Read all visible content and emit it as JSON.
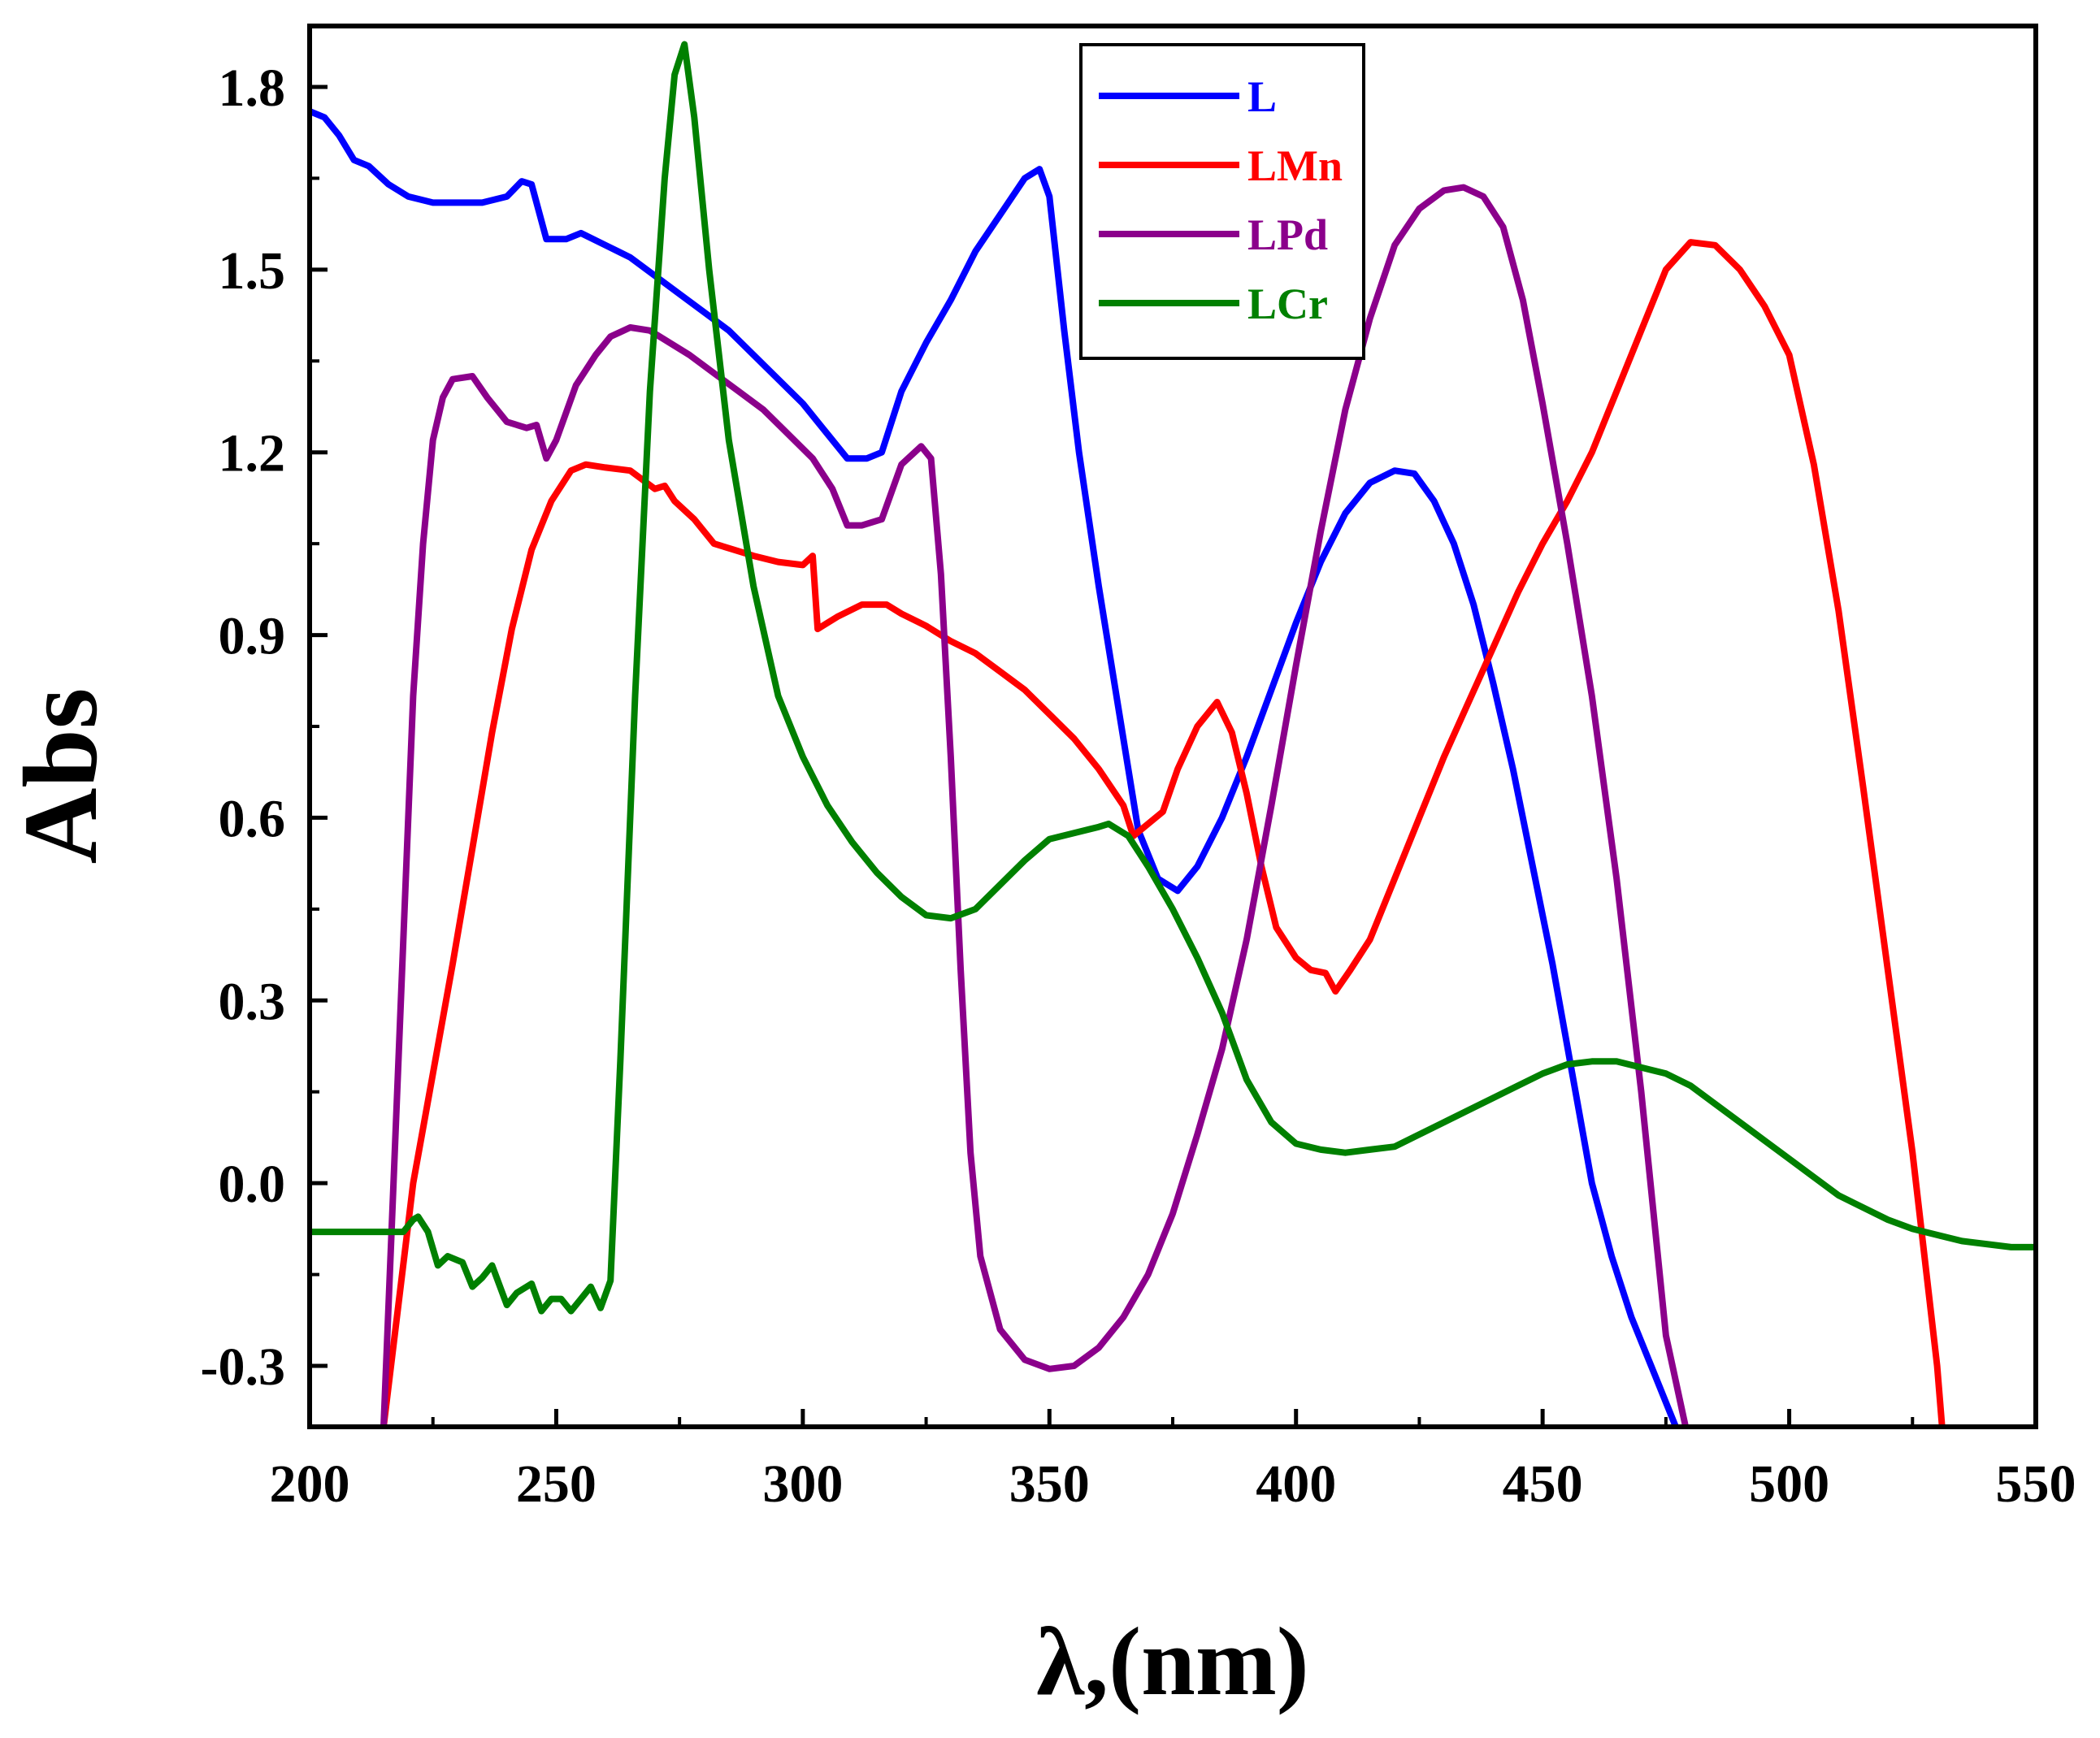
{
  "chart_data": {
    "type": "line",
    "title": "",
    "xlabel": "λ,(nm)",
    "ylabel": "Abs",
    "xlim": [
      200,
      550
    ],
    "ylim": [
      -0.4,
      1.9
    ],
    "xticks": [
      200,
      250,
      300,
      350,
      400,
      450,
      500,
      550
    ],
    "xtick_labels": [
      "200",
      "250",
      "300",
      "350",
      "400",
      "450",
      "500",
      "550"
    ],
    "yticks": [
      -0.3,
      0.0,
      0.3,
      0.6,
      0.9,
      1.2,
      1.5,
      1.8
    ],
    "ytick_labels": [
      "-0.3",
      "0.0",
      "0.3",
      "0.6",
      "0.9",
      "1.2",
      "1.5",
      "1.8"
    ],
    "grid": false,
    "legend_position": "top-center",
    "series": [
      {
        "name": "L",
        "color": "#0000ff",
        "points": [
          [
            200,
            1.76
          ],
          [
            203,
            1.75
          ],
          [
            206,
            1.72
          ],
          [
            209,
            1.68
          ],
          [
            212,
            1.67
          ],
          [
            216,
            1.64
          ],
          [
            220,
            1.62
          ],
          [
            225,
            1.61
          ],
          [
            230,
            1.61
          ],
          [
            235,
            1.61
          ],
          [
            240,
            1.62
          ],
          [
            243,
            1.645
          ],
          [
            245,
            1.64
          ],
          [
            248,
            1.55
          ],
          [
            252,
            1.55
          ],
          [
            255,
            1.56
          ],
          [
            260,
            1.54
          ],
          [
            265,
            1.52
          ],
          [
            270,
            1.49
          ],
          [
            275,
            1.46
          ],
          [
            280,
            1.43
          ],
          [
            285,
            1.4
          ],
          [
            290,
            1.36
          ],
          [
            295,
            1.32
          ],
          [
            300,
            1.28
          ],
          [
            305,
            1.23
          ],
          [
            309,
            1.19
          ],
          [
            313,
            1.19
          ],
          [
            316,
            1.2
          ],
          [
            320,
            1.3
          ],
          [
            325,
            1.38
          ],
          [
            330,
            1.45
          ],
          [
            335,
            1.53
          ],
          [
            340,
            1.59
          ],
          [
            345,
            1.65
          ],
          [
            348,
            1.665
          ],
          [
            350,
            1.62
          ],
          [
            353,
            1.4
          ],
          [
            356,
            1.2
          ],
          [
            360,
            0.98
          ],
          [
            364,
            0.78
          ],
          [
            368,
            0.58
          ],
          [
            372,
            0.5
          ],
          [
            376,
            0.48
          ],
          [
            380,
            0.52
          ],
          [
            385,
            0.6
          ],
          [
            390,
            0.7
          ],
          [
            395,
            0.81
          ],
          [
            400,
            0.92
          ],
          [
            405,
            1.02
          ],
          [
            410,
            1.1
          ],
          [
            415,
            1.15
          ],
          [
            420,
            1.17
          ],
          [
            424,
            1.165
          ],
          [
            428,
            1.12
          ],
          [
            432,
            1.05
          ],
          [
            436,
            0.95
          ],
          [
            440,
            0.82
          ],
          [
            444,
            0.68
          ],
          [
            448,
            0.52
          ],
          [
            452,
            0.36
          ],
          [
            456,
            0.18
          ],
          [
            460,
            0.0
          ],
          [
            464,
            -0.12
          ],
          [
            468,
            -0.22
          ],
          [
            472,
            -0.3
          ],
          [
            477,
            -0.4
          ]
        ]
      },
      {
        "name": "LMn",
        "color": "#ff0000",
        "points": [
          [
            215,
            -0.4
          ],
          [
            218,
            -0.2
          ],
          [
            221,
            0.0
          ],
          [
            225,
            0.18
          ],
          [
            229,
            0.36
          ],
          [
            233,
            0.55
          ],
          [
            237,
            0.74
          ],
          [
            241,
            0.91
          ],
          [
            245,
            1.04
          ],
          [
            249,
            1.12
          ],
          [
            253,
            1.17
          ],
          [
            256,
            1.18
          ],
          [
            260,
            1.175
          ],
          [
            265,
            1.17
          ],
          [
            270,
            1.14
          ],
          [
            272,
            1.145
          ],
          [
            274,
            1.12
          ],
          [
            278,
            1.09
          ],
          [
            282,
            1.05
          ],
          [
            286,
            1.04
          ],
          [
            290,
            1.03
          ],
          [
            295,
            1.02
          ],
          [
            300,
            1.015
          ],
          [
            302,
            1.03
          ],
          [
            303,
            0.91
          ],
          [
            307,
            0.93
          ],
          [
            312,
            0.95
          ],
          [
            317,
            0.95
          ],
          [
            320,
            0.935
          ],
          [
            325,
            0.915
          ],
          [
            330,
            0.89
          ],
          [
            335,
            0.87
          ],
          [
            340,
            0.84
          ],
          [
            345,
            0.81
          ],
          [
            350,
            0.77
          ],
          [
            355,
            0.73
          ],
          [
            360,
            0.68
          ],
          [
            365,
            0.62
          ],
          [
            367,
            0.57
          ],
          [
            370,
            0.59
          ],
          [
            373,
            0.61
          ],
          [
            376,
            0.68
          ],
          [
            380,
            0.75
          ],
          [
            384,
            0.79
          ],
          [
            387,
            0.74
          ],
          [
            390,
            0.64
          ],
          [
            393,
            0.52
          ],
          [
            396,
            0.42
          ],
          [
            400,
            0.37
          ],
          [
            403,
            0.35
          ],
          [
            406,
            0.345
          ],
          [
            408,
            0.315
          ],
          [
            411,
            0.35
          ],
          [
            415,
            0.4
          ],
          [
            420,
            0.5
          ],
          [
            425,
            0.6
          ],
          [
            430,
            0.7
          ],
          [
            435,
            0.79
          ],
          [
            440,
            0.88
          ],
          [
            445,
            0.97
          ],
          [
            450,
            1.05
          ],
          [
            455,
            1.12
          ],
          [
            460,
            1.2
          ],
          [
            465,
            1.3
          ],
          [
            470,
            1.4
          ],
          [
            475,
            1.5
          ],
          [
            480,
            1.545
          ],
          [
            485,
            1.54
          ],
          [
            490,
            1.5
          ],
          [
            495,
            1.44
          ],
          [
            500,
            1.36
          ],
          [
            505,
            1.18
          ],
          [
            510,
            0.94
          ],
          [
            515,
            0.65
          ],
          [
            520,
            0.35
          ],
          [
            525,
            0.05
          ],
          [
            530,
            -0.3
          ],
          [
            531,
            -0.4
          ]
        ]
      },
      {
        "name": "LPd",
        "color": "#8b008b",
        "points": [
          [
            215,
            -0.4
          ],
          [
            217,
            0.0
          ],
          [
            219,
            0.4
          ],
          [
            221,
            0.8
          ],
          [
            223,
            1.05
          ],
          [
            225,
            1.22
          ],
          [
            227,
            1.29
          ],
          [
            229,
            1.32
          ],
          [
            233,
            1.325
          ],
          [
            236,
            1.29
          ],
          [
            240,
            1.25
          ],
          [
            244,
            1.24
          ],
          [
            246,
            1.245
          ],
          [
            248,
            1.19
          ],
          [
            250,
            1.22
          ],
          [
            254,
            1.31
          ],
          [
            258,
            1.36
          ],
          [
            261,
            1.39
          ],
          [
            265,
            1.405
          ],
          [
            269,
            1.4
          ],
          [
            273,
            1.38
          ],
          [
            277,
            1.36
          ],
          [
            282,
            1.33
          ],
          [
            287,
            1.3
          ],
          [
            292,
            1.27
          ],
          [
            297,
            1.23
          ],
          [
            302,
            1.19
          ],
          [
            306,
            1.14
          ],
          [
            309,
            1.08
          ],
          [
            312,
            1.08
          ],
          [
            316,
            1.09
          ],
          [
            320,
            1.18
          ],
          [
            324,
            1.21
          ],
          [
            326,
            1.19
          ],
          [
            328,
            1.0
          ],
          [
            330,
            0.7
          ],
          [
            332,
            0.35
          ],
          [
            334,
            0.05
          ],
          [
            336,
            -0.12
          ],
          [
            340,
            -0.24
          ],
          [
            345,
            -0.29
          ],
          [
            350,
            -0.305
          ],
          [
            355,
            -0.3
          ],
          [
            360,
            -0.27
          ],
          [
            365,
            -0.22
          ],
          [
            370,
            -0.15
          ],
          [
            375,
            -0.05
          ],
          [
            380,
            0.08
          ],
          [
            385,
            0.22
          ],
          [
            390,
            0.4
          ],
          [
            395,
            0.62
          ],
          [
            400,
            0.85
          ],
          [
            405,
            1.07
          ],
          [
            410,
            1.27
          ],
          [
            415,
            1.42
          ],
          [
            420,
            1.54
          ],
          [
            425,
            1.6
          ],
          [
            430,
            1.63
          ],
          [
            434,
            1.635
          ],
          [
            438,
            1.62
          ],
          [
            442,
            1.57
          ],
          [
            446,
            1.45
          ],
          [
            450,
            1.28
          ],
          [
            455,
            1.05
          ],
          [
            460,
            0.8
          ],
          [
            465,
            0.5
          ],
          [
            470,
            0.15
          ],
          [
            475,
            -0.25
          ],
          [
            479,
            -0.4
          ]
        ]
      },
      {
        "name": "LCr",
        "color": "#008000",
        "points": [
          [
            200,
            -0.08
          ],
          [
            219,
            -0.08
          ],
          [
            221,
            -0.06
          ],
          [
            222,
            -0.055
          ],
          [
            224,
            -0.08
          ],
          [
            226,
            -0.135
          ],
          [
            228,
            -0.12
          ],
          [
            231,
            -0.13
          ],
          [
            233,
            -0.17
          ],
          [
            235,
            -0.155
          ],
          [
            237,
            -0.135
          ],
          [
            240,
            -0.2
          ],
          [
            242,
            -0.18
          ],
          [
            245,
            -0.165
          ],
          [
            247,
            -0.21
          ],
          [
            249,
            -0.19
          ],
          [
            251,
            -0.19
          ],
          [
            253,
            -0.21
          ],
          [
            255,
            -0.19
          ],
          [
            257,
            -0.17
          ],
          [
            259,
            -0.205
          ],
          [
            261,
            -0.16
          ],
          [
            263,
            0.2
          ],
          [
            266,
            0.8
          ],
          [
            269,
            1.3
          ],
          [
            272,
            1.65
          ],
          [
            274,
            1.82
          ],
          [
            276,
            1.87
          ],
          [
            278,
            1.75
          ],
          [
            281,
            1.5
          ],
          [
            285,
            1.22
          ],
          [
            290,
            0.98
          ],
          [
            295,
            0.8
          ],
          [
            300,
            0.7
          ],
          [
            305,
            0.62
          ],
          [
            310,
            0.56
          ],
          [
            315,
            0.51
          ],
          [
            320,
            0.47
          ],
          [
            325,
            0.44
          ],
          [
            330,
            0.435
          ],
          [
            335,
            0.45
          ],
          [
            340,
            0.49
          ],
          [
            345,
            0.53
          ],
          [
            350,
            0.565
          ],
          [
            355,
            0.575
          ],
          [
            360,
            0.585
          ],
          [
            362,
            0.59
          ],
          [
            366,
            0.57
          ],
          [
            370,
            0.52
          ],
          [
            375,
            0.45
          ],
          [
            380,
            0.37
          ],
          [
            385,
            0.28
          ],
          [
            390,
            0.17
          ],
          [
            395,
            0.1
          ],
          [
            400,
            0.065
          ],
          [
            405,
            0.055
          ],
          [
            410,
            0.05
          ],
          [
            415,
            0.055
          ],
          [
            420,
            0.06
          ],
          [
            425,
            0.08
          ],
          [
            430,
            0.1
          ],
          [
            435,
            0.12
          ],
          [
            440,
            0.14
          ],
          [
            445,
            0.16
          ],
          [
            450,
            0.18
          ],
          [
            455,
            0.195
          ],
          [
            460,
            0.2
          ],
          [
            465,
            0.2
          ],
          [
            470,
            0.19
          ],
          [
            475,
            0.18
          ],
          [
            480,
            0.16
          ],
          [
            485,
            0.13
          ],
          [
            490,
            0.1
          ],
          [
            495,
            0.07
          ],
          [
            500,
            0.04
          ],
          [
            505,
            0.01
          ],
          [
            510,
            -0.02
          ],
          [
            515,
            -0.04
          ],
          [
            520,
            -0.06
          ],
          [
            525,
            -0.075
          ],
          [
            530,
            -0.085
          ],
          [
            535,
            -0.095
          ],
          [
            540,
            -0.1
          ],
          [
            545,
            -0.105
          ],
          [
            550,
            -0.105
          ]
        ]
      }
    ]
  }
}
